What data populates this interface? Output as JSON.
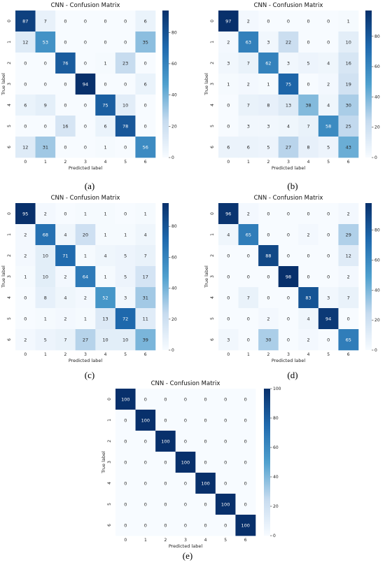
{
  "colorscale": {
    "low": "#f7fbff",
    "mid": "#4fa0ce",
    "high": "#08306b"
  },
  "chart_data": [
    {
      "panel": "(a)",
      "type": "heatmap",
      "title": "CNN - Confusion Matrix",
      "xlabel": "Predicted label",
      "ylabel": "True label",
      "x_categories": [
        "0",
        "1",
        "2",
        "3",
        "4",
        "5",
        "6"
      ],
      "y_categories": [
        "0",
        "1",
        "2",
        "3",
        "4",
        "5",
        "6"
      ],
      "values": [
        [
          87,
          7,
          0,
          0,
          0,
          0,
          6
        ],
        [
          12,
          53,
          0,
          0,
          0,
          0,
          35
        ],
        [
          0,
          0,
          76,
          0,
          1,
          23,
          0
        ],
        [
          0,
          0,
          0,
          94,
          0,
          0,
          6
        ],
        [
          6,
          9,
          0,
          0,
          75,
          10,
          0
        ],
        [
          0,
          0,
          16,
          0,
          6,
          78,
          0
        ],
        [
          12,
          31,
          0,
          0,
          1,
          0,
          56
        ]
      ],
      "colorbar": {
        "min": 0,
        "max": 94,
        "ticks": [
          0,
          20,
          40,
          60,
          80
        ]
      }
    },
    {
      "panel": "(b)",
      "type": "heatmap",
      "title": "CNN - Confusion Matrix",
      "xlabel": "Predicted label",
      "ylabel": "True label",
      "x_categories": [
        "0",
        "1",
        "2",
        "3",
        "4",
        "5",
        "6"
      ],
      "y_categories": [
        "0",
        "1",
        "2",
        "3",
        "4",
        "5",
        "6"
      ],
      "values": [
        [
          97,
          2,
          0,
          0,
          0,
          0,
          1
        ],
        [
          2,
          63,
          3,
          22,
          0,
          0,
          10
        ],
        [
          3,
          7,
          62,
          3,
          5,
          4,
          16
        ],
        [
          1,
          2,
          1,
          75,
          0,
          2,
          19
        ],
        [
          0,
          7,
          8,
          13,
          38,
          4,
          30
        ],
        [
          0,
          3,
          3,
          4,
          7,
          58,
          25
        ],
        [
          6,
          6,
          5,
          27,
          8,
          5,
          43
        ]
      ],
      "colorbar": {
        "min": 0,
        "max": 97,
        "ticks": [
          0,
          20,
          40,
          60,
          80
        ]
      }
    },
    {
      "panel": "(c)",
      "type": "heatmap",
      "title": "CNN - Confusion Matrix",
      "xlabel": "Predicted label",
      "ylabel": "True label",
      "x_categories": [
        "0",
        "1",
        "2",
        "3",
        "4",
        "5",
        "6"
      ],
      "y_categories": [
        "0",
        "1",
        "2",
        "3",
        "4",
        "5",
        "6"
      ],
      "values": [
        [
          95,
          2,
          0,
          1,
          1,
          0,
          1
        ],
        [
          2,
          68,
          4,
          20,
          1,
          1,
          4
        ],
        [
          2,
          10,
          71,
          1,
          4,
          5,
          7
        ],
        [
          1,
          10,
          2,
          64,
          1,
          5,
          17
        ],
        [
          0,
          8,
          4,
          2,
          52,
          3,
          31
        ],
        [
          0,
          1,
          2,
          1,
          13,
          72,
          11
        ],
        [
          2,
          5,
          7,
          27,
          10,
          10,
          39
        ]
      ],
      "colorbar": {
        "min": 0,
        "max": 95,
        "ticks": [
          0,
          20,
          40,
          60,
          80
        ]
      }
    },
    {
      "panel": "(d)",
      "type": "heatmap",
      "title": "CNN - Confusion Matrix",
      "xlabel": "Predicted label",
      "ylabel": "True label",
      "x_categories": [
        "0",
        "1",
        "2",
        "3",
        "4",
        "5",
        "6"
      ],
      "y_categories": [
        "0",
        "1",
        "2",
        "3",
        "4",
        "5",
        "6"
      ],
      "values": [
        [
          96,
          2,
          0,
          0,
          0,
          0,
          2
        ],
        [
          4,
          65,
          0,
          0,
          2,
          0,
          29
        ],
        [
          0,
          0,
          88,
          0,
          0,
          0,
          12
        ],
        [
          0,
          0,
          0,
          98,
          0,
          0,
          2
        ],
        [
          0,
          7,
          0,
          0,
          83,
          3,
          7
        ],
        [
          0,
          0,
          2,
          0,
          4,
          94,
          0
        ],
        [
          3,
          0,
          30,
          0,
          2,
          0,
          65
        ]
      ],
      "colorbar": {
        "min": 0,
        "max": 98,
        "ticks": [
          0,
          20,
          40,
          60,
          80
        ]
      }
    },
    {
      "panel": "(e)",
      "type": "heatmap",
      "title": "CNN - Confusion Matrix",
      "xlabel": "Predicted label",
      "ylabel": "True label",
      "x_categories": [
        "0",
        "1",
        "2",
        "3",
        "4",
        "5",
        "6"
      ],
      "y_categories": [
        "0",
        "1",
        "2",
        "3",
        "4",
        "5",
        "6"
      ],
      "values": [
        [
          100,
          0,
          0,
          0,
          0,
          0,
          0
        ],
        [
          0,
          100,
          0,
          0,
          0,
          0,
          0
        ],
        [
          0,
          0,
          100,
          0,
          0,
          0,
          0
        ],
        [
          0,
          0,
          0,
          100,
          0,
          0,
          0
        ],
        [
          0,
          0,
          0,
          0,
          100,
          0,
          0
        ],
        [
          0,
          0,
          0,
          0,
          0,
          100,
          0
        ],
        [
          0,
          0,
          0,
          0,
          0,
          0,
          100
        ]
      ],
      "colorbar": {
        "min": 0,
        "max": 100,
        "ticks": [
          0,
          20,
          40,
          60,
          80,
          100
        ]
      }
    }
  ]
}
